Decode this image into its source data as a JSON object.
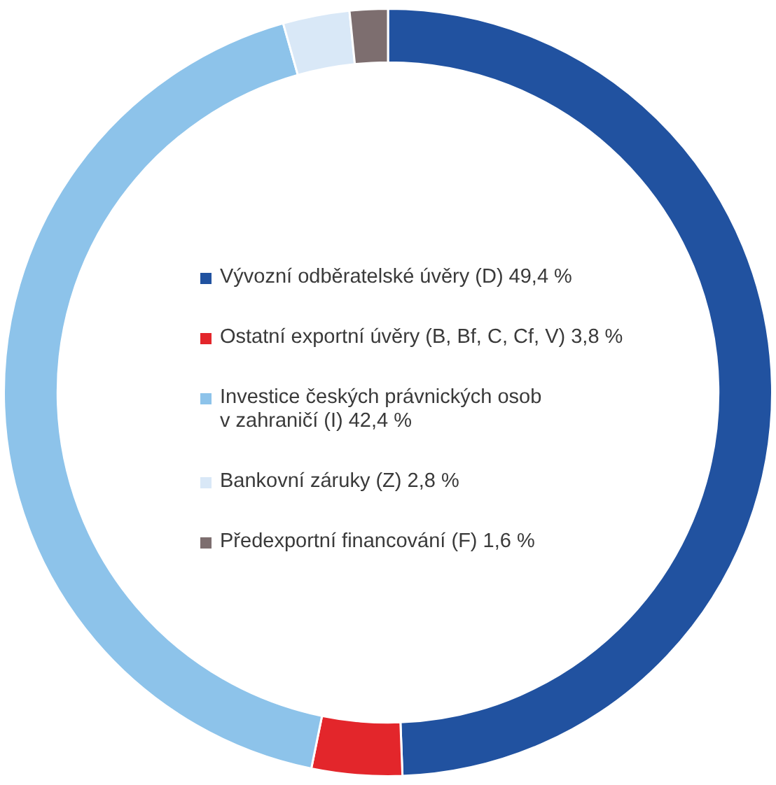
{
  "chart_data": {
    "type": "donut",
    "categories": [
      "Vývozní odběratelské úvěry (D)",
      "Ostatní exportní úvěry (B, Bf, C, Cf, V)",
      "Investice českých právnických osob\nv zahraničí (I)",
      "Bankovní záruky (Z)",
      "Předexportní financování (F)"
    ],
    "values": [
      49.4,
      3.8,
      42.4,
      2.8,
      1.6
    ],
    "value_labels": [
      "49,4 %",
      "3,8 %",
      "42,4 %",
      "2,8 %",
      "1,6 %"
    ],
    "colors": [
      "#2152a0",
      "#e3262b",
      "#8dc3ea",
      "#d9e8f7",
      "#7d6e6f"
    ],
    "legend": "center"
  }
}
